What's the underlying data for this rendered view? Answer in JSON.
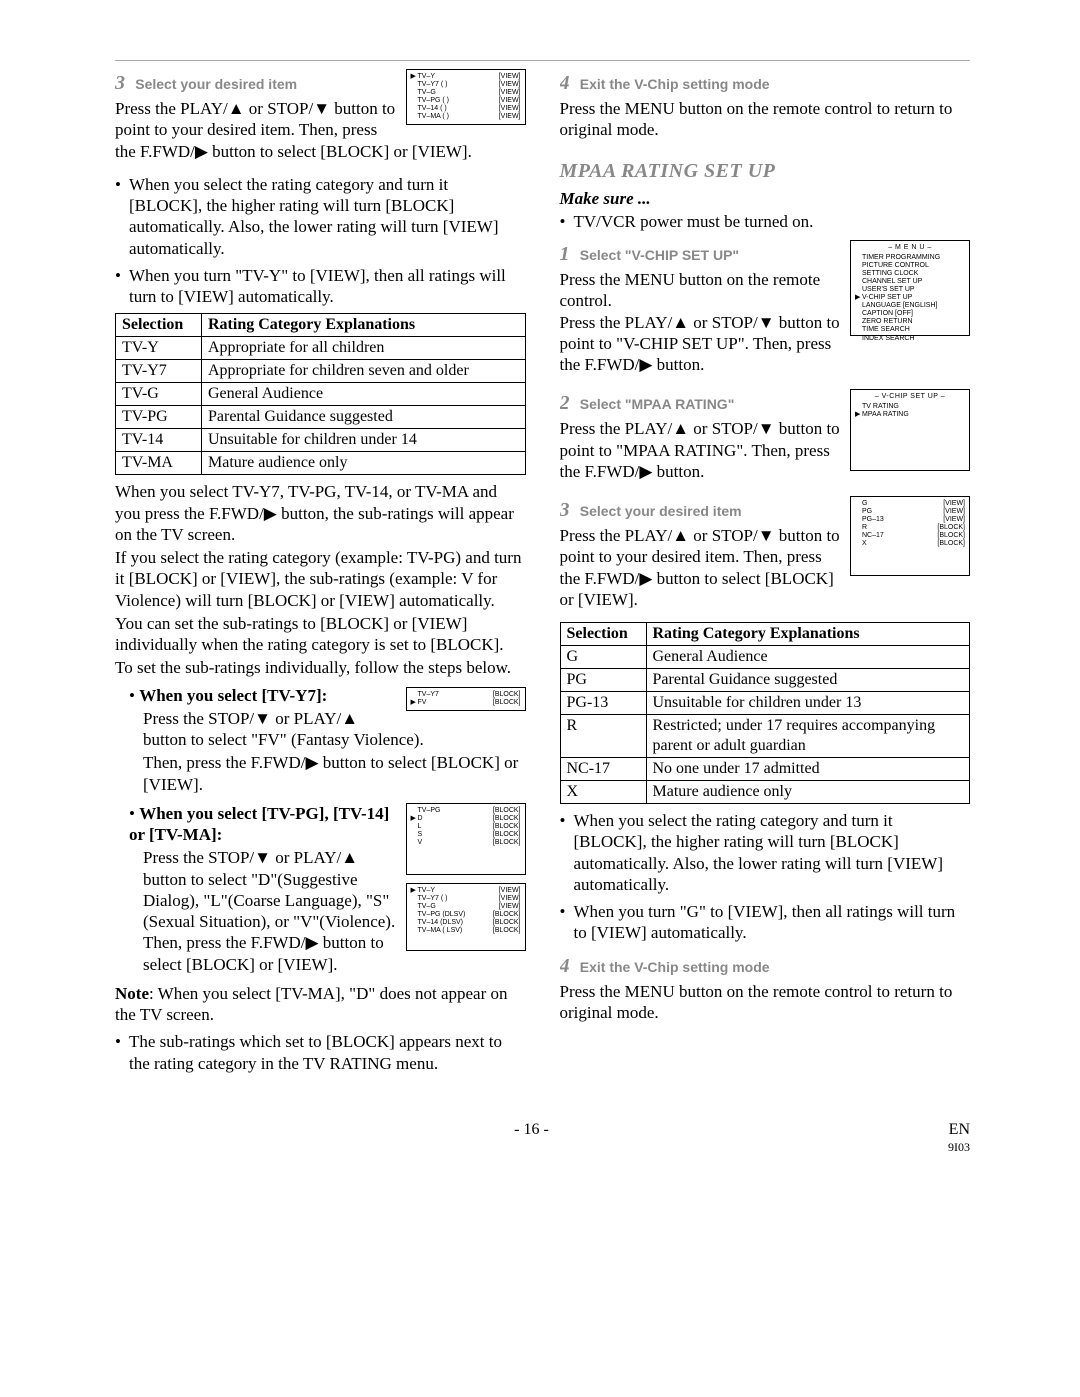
{
  "left": {
    "step3": {
      "num": "3",
      "title": "Select your desired item",
      "body": "Press the PLAY/▲ or STOP/▼ button to point to your desired item. Then, press the F.FWD/▶ button to select [BLOCK] or [VIEW].",
      "osd": [
        {
          "ptr": "▶",
          "lbl": "TV–Y",
          "mid": "",
          "val": "[VIEW]"
        },
        {
          "ptr": "",
          "lbl": "TV–Y7",
          "mid": "(       )",
          "val": "[VIEW]"
        },
        {
          "ptr": "",
          "lbl": "TV–G",
          "mid": "",
          "val": "[VIEW]"
        },
        {
          "ptr": "",
          "lbl": "TV–PG",
          "mid": "(       )",
          "val": "[VIEW]"
        },
        {
          "ptr": "",
          "lbl": "TV–14",
          "mid": "(       )",
          "val": "[VIEW]"
        },
        {
          "ptr": "",
          "lbl": "TV–MA",
          "mid": "(       )",
          "val": "[VIEW]"
        }
      ]
    },
    "bullets1": [
      "When you select the rating category and turn it [BLOCK], the higher rating will turn [BLOCK] automatically. Also, the lower rating will turn [VIEW] automatically.",
      "When you turn \"TV-Y\" to [VIEW], then all ratings will turn to [VIEW] automatically."
    ],
    "tvTable": {
      "head": [
        "Selection",
        "Rating Category Explanations"
      ],
      "rows": [
        [
          "TV-Y",
          "Appropriate for all children"
        ],
        [
          "TV-Y7",
          "Appropriate for children seven and older"
        ],
        [
          "TV-G",
          "General Audience"
        ],
        [
          "TV-PG",
          "Parental Guidance suggested"
        ],
        [
          "TV-14",
          "Unsuitable for children under 14"
        ],
        [
          "TV-MA",
          "Mature audience only"
        ]
      ]
    },
    "afterTable1": "When you select TV-Y7, TV-PG, TV-14, or TV-MA and you press the F.FWD/▶ button, the sub-ratings will appear on the TV screen.",
    "afterTable2": "If you select the rating category (example: TV-PG) and turn it [BLOCK] or [VIEW], the sub-ratings (example: V for Violence) will turn [BLOCK] or [VIEW] automatically.",
    "afterTable3": "You can set the sub-ratings to [BLOCK] or [VIEW] individually when the rating category is set to [BLOCK].",
    "afterTable4": "To set the sub-ratings individually, follow the steps below.",
    "y7": {
      "head": "When you select [TV-Y7]:",
      "body1": "Press the STOP/▼ or PLAY/▲ button to select \"FV\" (Fantasy Violence).",
      "body2": "Then, press the F.FWD/▶ button to select [BLOCK] or [VIEW].",
      "osd": [
        {
          "ptr": "",
          "lbl": "TV–Y7",
          "val": "[BLOCK]"
        },
        {
          "ptr": "▶",
          "lbl": "FV",
          "val": "[BLOCK]"
        }
      ]
    },
    "pg14ma": {
      "head": "When you select [TV-PG], [TV-14] or [TV-MA]:",
      "body": "Press the STOP/▼ or PLAY/▲ button to select \"D\"(Suggestive Dialog), \"L\"(Coarse Language), \"S\"(Sexual Situation), or \"V\"(Violence). Then, press the F.FWD/▶ button to select [BLOCK] or [VIEW].",
      "osd1": [
        {
          "ptr": "",
          "lbl": "TV–PG",
          "val": "[BLOCK]"
        },
        {
          "ptr": "▶",
          "lbl": "D",
          "val": "[BLOCK]"
        },
        {
          "ptr": "",
          "lbl": "L",
          "val": "[BLOCK]"
        },
        {
          "ptr": "",
          "lbl": "S",
          "val": "[BLOCK]"
        },
        {
          "ptr": "",
          "lbl": "V",
          "val": "[BLOCK]"
        }
      ],
      "osd2": [
        {
          "ptr": "▶",
          "lbl": "TV–Y",
          "mid": "",
          "val": "[VIEW]"
        },
        {
          "ptr": "",
          "lbl": "TV–Y7",
          "mid": "(       )",
          "val": "[VIEW]"
        },
        {
          "ptr": "",
          "lbl": "TV–G",
          "mid": "",
          "val": "[VIEW]"
        },
        {
          "ptr": "",
          "lbl": "TV–PG",
          "mid": "(DLSV)",
          "val": "[BLOCK]"
        },
        {
          "ptr": "",
          "lbl": "TV–14",
          "mid": "(DLSV)",
          "val": "[BLOCK]"
        },
        {
          "ptr": "",
          "lbl": "TV–MA",
          "mid": "(  LSV)",
          "val": "[BLOCK]"
        }
      ]
    },
    "note": "Note: When you select [TV-MA], \"D\" does not appear on the TV screen.",
    "lastBullet": "The sub-ratings which set to [BLOCK] appears next to the rating category in the TV RATING menu."
  },
  "right": {
    "step4a": {
      "num": "4",
      "title": "Exit the V-Chip setting mode",
      "body": "Press the MENU button on the remote control to return to original mode."
    },
    "sectionTitle": "MPAA RATING SET UP",
    "makeSure": "Make sure ...",
    "msBullet": "TV/VCR power must be turned on.",
    "step1": {
      "num": "1",
      "title": "Select \"V-CHIP SET UP\"",
      "body": "Press the MENU button on the remote control.\nPress the PLAY/▲ or STOP/▼ button to point to \"V-CHIP SET UP\". Then, press the F.FWD/▶ button.",
      "osdTitle": "– M E N U –",
      "osd": [
        {
          "ptr": "",
          "lbl": "TIMER PROGRAMMING"
        },
        {
          "ptr": "",
          "lbl": "PICTURE CONTROL"
        },
        {
          "ptr": "",
          "lbl": "SETTING CLOCK"
        },
        {
          "ptr": "",
          "lbl": "CHANNEL SET UP"
        },
        {
          "ptr": "",
          "lbl": "USER'S SET UP"
        },
        {
          "ptr": "▶",
          "lbl": "V-CHIP SET UP"
        },
        {
          "ptr": "",
          "lbl": "LANGUAGE  [ENGLISH]"
        },
        {
          "ptr": "",
          "lbl": "CAPTION  [OFF]"
        },
        {
          "ptr": "",
          "lbl": "ZERO RETURN"
        },
        {
          "ptr": "",
          "lbl": "TIME SEARCH"
        },
        {
          "ptr": "",
          "lbl": "INDEX SEARCH"
        }
      ]
    },
    "step2": {
      "num": "2",
      "title": "Select \"MPAA RATING\"",
      "body": "Press the PLAY/▲ or STOP/▼ button to point to \"MPAA RATING\". Then, press the F.FWD/▶ button.",
      "osdTitle": "– V-CHIP SET UP –",
      "osd": [
        {
          "ptr": "",
          "lbl": "TV RATING"
        },
        {
          "ptr": "▶",
          "lbl": "MPAA RATING"
        }
      ]
    },
    "step3": {
      "num": "3",
      "title": "Select your desired item",
      "body": "Press the PLAY/▲ or STOP/▼ button to point to your desired item. Then, press the F.FWD/▶ button to select [BLOCK] or [VIEW].",
      "osd": [
        {
          "ptr": "",
          "lbl": "G",
          "val": "[VIEW]"
        },
        {
          "ptr": "",
          "lbl": "PG",
          "val": "[VIEW]"
        },
        {
          "ptr": "",
          "lbl": "PG–13",
          "val": "[VIEW]"
        },
        {
          "ptr": "",
          "lbl": "R",
          "val": "[BLOCK]"
        },
        {
          "ptr": "",
          "lbl": "NC–17",
          "val": "[BLOCK]"
        },
        {
          "ptr": "",
          "lbl": "X",
          "val": "[BLOCK]"
        }
      ]
    },
    "mpaaTable": {
      "head": [
        "Selection",
        "Rating Category Explanations"
      ],
      "rows": [
        [
          "G",
          "General Audience"
        ],
        [
          "PG",
          "Parental Guidance suggested"
        ],
        [
          "PG-13",
          "Unsuitable for children under 13"
        ],
        [
          "R",
          "Restricted; under 17 requires accompanying parent or adult guardian"
        ],
        [
          "NC-17",
          "No one under 17 admitted"
        ],
        [
          "X",
          "Mature audience only"
        ]
      ]
    },
    "bullets": [
      "When you select the rating category and turn it [BLOCK], the higher rating will turn [BLOCK] automatically.  Also, the lower rating will turn [VIEW] automatically.",
      "When you turn \"G\" to [VIEW], then all ratings will turn to [VIEW] automatically."
    ],
    "step4b": {
      "num": "4",
      "title": "Exit the V-Chip setting mode",
      "body": "Press the MENU button on the remote control to return to original mode."
    }
  },
  "footer": {
    "page": "- 16 -",
    "lang": "EN",
    "code": "9I03"
  },
  "style": {
    "stepNumColor": "#888888",
    "stepTitleColor": "#888888",
    "borderColor": "#000000"
  }
}
